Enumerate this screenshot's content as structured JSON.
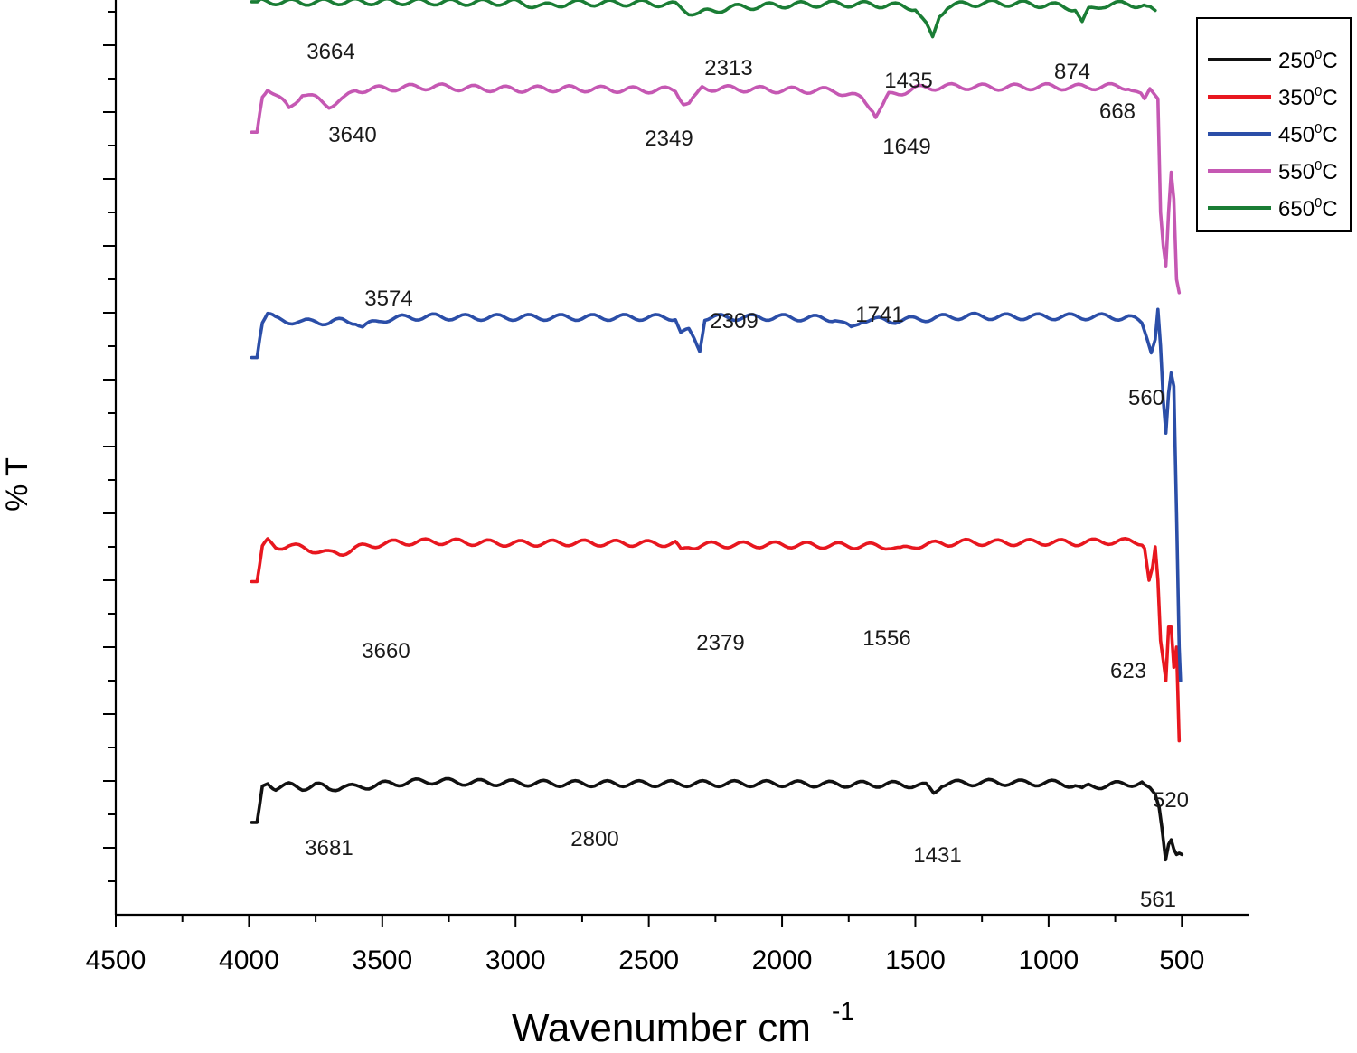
{
  "chart_data": {
    "type": "line",
    "title": "",
    "xlabel": "Wavenumber cm",
    "xlabel_superscript": "-1",
    "ylabel": "% T",
    "xlim": [
      4500,
      250
    ],
    "x_reversed": true,
    "ylim": [
      0,
      1
    ],
    "y_tick_labels_shown": false,
    "x_ticks": [
      4500,
      4000,
      3500,
      3000,
      2500,
      2000,
      1500,
      1000,
      500
    ],
    "x_tick_labels": [
      "4500",
      "4000",
      "3500",
      "3000",
      "2500",
      "2000",
      "1500",
      "1000",
      "500"
    ],
    "legend_position": "top-right",
    "series": [
      {
        "name": "250°C",
        "name_base": "250",
        "name_sup": "0",
        "name_unit": "C",
        "color": "#111111",
        "x": [
          3990,
          3970,
          3950,
          3930,
          3900,
          3850,
          3800,
          3750,
          3700,
          3650,
          3600,
          3500,
          3400,
          3300,
          3200,
          3000,
          2800,
          2500,
          2000,
          1800,
          1600,
          1500,
          1460,
          1431,
          1400,
          1300,
          1200,
          1100,
          1000,
          950,
          900,
          874,
          850,
          800,
          700,
          650,
          620,
          600,
          585,
          575,
          561,
          550,
          540,
          530,
          520,
          510,
          500
        ],
        "y": [
          0.138,
          0.138,
          0.19,
          0.198,
          0.19,
          0.193,
          0.19,
          0.194,
          0.188,
          0.192,
          0.19,
          0.195,
          0.198,
          0.2,
          0.198,
          0.197,
          0.196,
          0.196,
          0.196,
          0.195,
          0.195,
          0.194,
          0.192,
          0.182,
          0.196,
          0.197,
          0.198,
          0.197,
          0.197,
          0.196,
          0.194,
          0.186,
          0.192,
          0.193,
          0.196,
          0.197,
          0.19,
          0.18,
          0.16,
          0.13,
          0.082,
          0.105,
          0.112,
          0.098,
          0.09,
          0.092,
          0.09
        ]
      },
      {
        "name": "350°C",
        "name_base": "350",
        "name_sup": "0",
        "name_unit": "C",
        "color": "#e8171f",
        "x": [
          3990,
          3970,
          3950,
          3930,
          3900,
          3850,
          3800,
          3750,
          3700,
          3660,
          3600,
          3500,
          3400,
          3300,
          3200,
          3000,
          2800,
          2500,
          2400,
          2379,
          2350,
          2300,
          2000,
          1800,
          1600,
          1556,
          1500,
          1400,
          1300,
          1200,
          1000,
          900,
          800,
          700,
          650,
          640,
          623,
          610,
          600,
          590,
          580,
          570,
          560,
          550,
          540,
          530,
          520,
          510
        ],
        "y": [
          0.498,
          0.498,
          0.548,
          0.558,
          0.55,
          0.552,
          0.548,
          0.545,
          0.54,
          0.54,
          0.548,
          0.555,
          0.557,
          0.558,
          0.557,
          0.555,
          0.556,
          0.555,
          0.555,
          0.543,
          0.55,
          0.553,
          0.553,
          0.552,
          0.551,
          0.545,
          0.552,
          0.555,
          0.557,
          0.556,
          0.557,
          0.556,
          0.558,
          0.558,
          0.557,
          0.548,
          0.5,
          0.52,
          0.55,
          0.5,
          0.41,
          0.38,
          0.35,
          0.43,
          0.43,
          0.37,
          0.4,
          0.26
        ]
      },
      {
        "name": "450°C",
        "name_base": "450",
        "name_sup": "0",
        "name_unit": "C",
        "color": "#2b4ea8",
        "x": [
          3990,
          3970,
          3950,
          3930,
          3900,
          3850,
          3800,
          3750,
          3700,
          3650,
          3600,
          3574,
          3500,
          3400,
          3300,
          3200,
          3000,
          2800,
          2500,
          2400,
          2380,
          2350,
          2330,
          2309,
          2290,
          2000,
          1800,
          1760,
          1741,
          1700,
          1600,
          1500,
          1400,
          1300,
          1200,
          1000,
          900,
          800,
          700,
          650,
          630,
          615,
          600,
          590,
          580,
          570,
          560,
          550,
          540,
          530,
          520,
          510,
          505
        ],
        "y": [
          0.833,
          0.833,
          0.888,
          0.898,
          0.89,
          0.888,
          0.885,
          0.888,
          0.885,
          0.888,
          0.887,
          0.878,
          0.89,
          0.893,
          0.894,
          0.893,
          0.893,
          0.893,
          0.893,
          0.893,
          0.87,
          0.872,
          0.86,
          0.845,
          0.893,
          0.893,
          0.891,
          0.88,
          0.876,
          0.89,
          0.888,
          0.89,
          0.893,
          0.895,
          0.894,
          0.894,
          0.894,
          0.894,
          0.893,
          0.885,
          0.86,
          0.84,
          0.86,
          0.905,
          0.85,
          0.77,
          0.72,
          0.78,
          0.81,
          0.79,
          0.6,
          0.4,
          0.35
        ]
      },
      {
        "name": "550°C",
        "name_base": "550",
        "name_sup": "0",
        "name_unit": "C",
        "color": "#c558b3",
        "x": [
          3990,
          3970,
          3950,
          3930,
          3900,
          3860,
          3850,
          3800,
          3750,
          3700,
          3640,
          3600,
          3500,
          3400,
          3300,
          3200,
          3000,
          2800,
          2500,
          2400,
          2370,
          2349,
          2320,
          2300,
          2000,
          1800,
          1700,
          1660,
          1649,
          1620,
          1600,
          1500,
          1400,
          1300,
          1200,
          1000,
          900,
          800,
          700,
          668,
          640,
          620,
          600,
          590,
          580,
          570,
          560,
          550,
          540,
          530,
          520,
          510
        ],
        "y": [
          1.17,
          1.17,
          1.225,
          1.237,
          1.225,
          1.21,
          1.205,
          1.228,
          1.22,
          1.21,
          1.22,
          1.233,
          1.235,
          1.237,
          1.238,
          1.236,
          1.234,
          1.235,
          1.233,
          1.233,
          1.215,
          1.213,
          1.224,
          1.236,
          1.233,
          1.232,
          1.22,
          1.205,
          1.195,
          1.21,
          1.225,
          1.235,
          1.238,
          1.238,
          1.237,
          1.238,
          1.237,
          1.238,
          1.238,
          1.228,
          1.22,
          1.235,
          1.225,
          1.22,
          1.05,
          1.0,
          0.97,
          1.05,
          1.11,
          1.07,
          0.95,
          0.93
        ]
      },
      {
        "name": "650°C",
        "name_base": "650",
        "name_sup": "0",
        "name_unit": "C",
        "color": "#1a7d35",
        "x": [
          3990,
          3900,
          3800,
          3664,
          3600,
          3400,
          3200,
          3000,
          2900,
          2800,
          2500,
          2400,
          2350,
          2313,
          2280,
          2250,
          2200,
          2000,
          1800,
          1600,
          1500,
          1460,
          1435,
          1410,
          1380,
          1300,
          1200,
          1100,
          1000,
          950,
          900,
          874,
          850,
          800,
          700,
          620,
          600
        ],
        "y": [
          1.365,
          1.365,
          1.364,
          1.365,
          1.365,
          1.365,
          1.364,
          1.364,
          1.358,
          1.363,
          1.363,
          1.36,
          1.35,
          1.347,
          1.35,
          1.352,
          1.356,
          1.36,
          1.362,
          1.36,
          1.356,
          1.33,
          1.31,
          1.345,
          1.358,
          1.362,
          1.363,
          1.362,
          1.36,
          1.358,
          1.355,
          1.333,
          1.352,
          1.36,
          1.362,
          1.358,
          1.352
        ]
      }
    ],
    "annotations": [
      {
        "text": "3664",
        "series": "650°C"
      },
      {
        "text": "2313",
        "series": "650°C"
      },
      {
        "text": "1435",
        "series": "650°C"
      },
      {
        "text": "874",
        "series": "650°C"
      },
      {
        "text": "3640",
        "series": "550°C"
      },
      {
        "text": "2349",
        "series": "550°C"
      },
      {
        "text": "1649",
        "series": "550°C"
      },
      {
        "text": "668",
        "series": "550°C"
      },
      {
        "text": "3574",
        "series": "450°C"
      },
      {
        "text": "2309",
        "series": "450°C"
      },
      {
        "text": "1741",
        "series": "450°C"
      },
      {
        "text": "560",
        "series": "450°C"
      },
      {
        "text": "3660",
        "series": "350°C"
      },
      {
        "text": "2379",
        "series": "350°C"
      },
      {
        "text": "1556",
        "series": "350°C"
      },
      {
        "text": "623",
        "series": "350°C"
      },
      {
        "text": "520",
        "series": "350°C"
      },
      {
        "text": "3681",
        "series": "250°C"
      },
      {
        "text": "2800",
        "series": "250°C"
      },
      {
        "text": "1431",
        "series": "250°C"
      },
      {
        "text": "561",
        "series": "250°C"
      }
    ]
  }
}
